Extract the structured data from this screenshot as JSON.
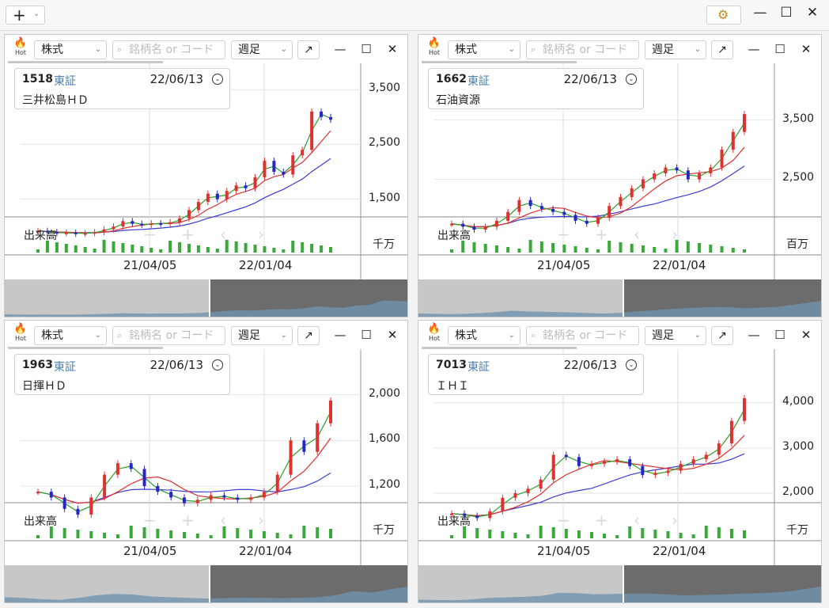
{
  "toolbar": {
    "add_label": "+",
    "add_icon": "plus-icon",
    "settings_icon": "gear-icon"
  },
  "window_controls": {
    "minimize": "—",
    "maximize": "☐",
    "close": "✕"
  },
  "panels": [
    {
      "hot_label": "Hot",
      "market": "株式",
      "search_placeholder": "銘柄名 or コード",
      "period": "週足",
      "code": "1518",
      "exchange": "東証",
      "date": "22/06/13",
      "name": "三井松島ＨＤ",
      "volume_label": "出来高",
      "volume_unit": "千万",
      "price_ticks": [
        "3,500",
        "2,500",
        "1,500"
      ],
      "x_labels": [
        "21/04/05",
        "22/01/04"
      ],
      "chart_data": {
        "type": "line",
        "title": "",
        "y_ticks": [
          3500,
          2500,
          1500
        ],
        "close": [
          920,
          900,
          880,
          890,
          870,
          880,
          900,
          950,
          1000,
          1100,
          1050,
          1030,
          1060,
          1050,
          1080,
          1150,
          1300,
          1450,
          1600,
          1500,
          1650,
          1750,
          1700,
          1900,
          2200,
          2000,
          1950,
          2300,
          2400,
          3100,
          3000,
          2950
        ]
      }
    },
    {
      "hot_label": "Hot",
      "market": "株式",
      "search_placeholder": "銘柄名 or コード",
      "period": "週足",
      "code": "1662",
      "exchange": "東証",
      "date": "22/06/13",
      "name": "石油資源",
      "volume_label": "出来高",
      "volume_unit": "百万",
      "price_ticks": [
        "3,500",
        "2,500"
      ],
      "x_labels": [
        "21/04/05",
        "22/01/04"
      ],
      "chart_data": {
        "type": "line",
        "title": "",
        "y_ticks": [
          3500,
          2500
        ],
        "close": [
          1750,
          1700,
          1650,
          1700,
          1800,
          1950,
          2150,
          2050,
          2000,
          1950,
          1900,
          1800,
          1750,
          1850,
          2050,
          2200,
          2350,
          2500,
          2600,
          2700,
          2650,
          2500,
          2600,
          2700,
          3000,
          3300,
          3600
        ]
      }
    },
    {
      "hot_label": "Hot",
      "market": "株式",
      "search_placeholder": "銘柄名 or コード",
      "period": "週足",
      "code": "1963",
      "exchange": "東証",
      "date": "22/06/13",
      "name": "日揮ＨＤ",
      "volume_label": "出来高",
      "volume_unit": "千万",
      "price_ticks": [
        "2,000",
        "1,600",
        "1,200"
      ],
      "x_labels": [
        "21/04/05",
        "22/01/04"
      ],
      "chart_data": {
        "type": "line",
        "title": "",
        "y_ticks": [
          2000,
          1600,
          1200
        ],
        "close": [
          1150,
          1100,
          1000,
          950,
          1100,
          1300,
          1400,
          1350,
          1200,
          1150,
          1100,
          1050,
          1080,
          1120,
          1100,
          1080,
          1100,
          1150,
          1300,
          1600,
          1500,
          1750,
          1950
        ]
      }
    },
    {
      "hot_label": "Hot",
      "market": "株式",
      "search_placeholder": "銘柄名 or コード",
      "period": "週足",
      "code": "7013",
      "exchange": "東証",
      "date": "22/06/13",
      "name": "ＩＨＩ",
      "volume_label": "出来高",
      "volume_unit": "千万",
      "price_ticks": [
        "4,000",
        "3,000",
        "2,000"
      ],
      "x_labels": [
        "21/04/05",
        "22/01/04"
      ],
      "chart_data": {
        "type": "line",
        "title": "",
        "y_ticks": [
          4000,
          3000,
          2000
        ],
        "close": [
          1550,
          1500,
          1450,
          1600,
          1900,
          2000,
          2100,
          2300,
          2850,
          2800,
          2600,
          2650,
          2700,
          2750,
          2600,
          2400,
          2450,
          2500,
          2650,
          2750,
          2850,
          3100,
          3600,
          4100
        ]
      }
    }
  ]
}
